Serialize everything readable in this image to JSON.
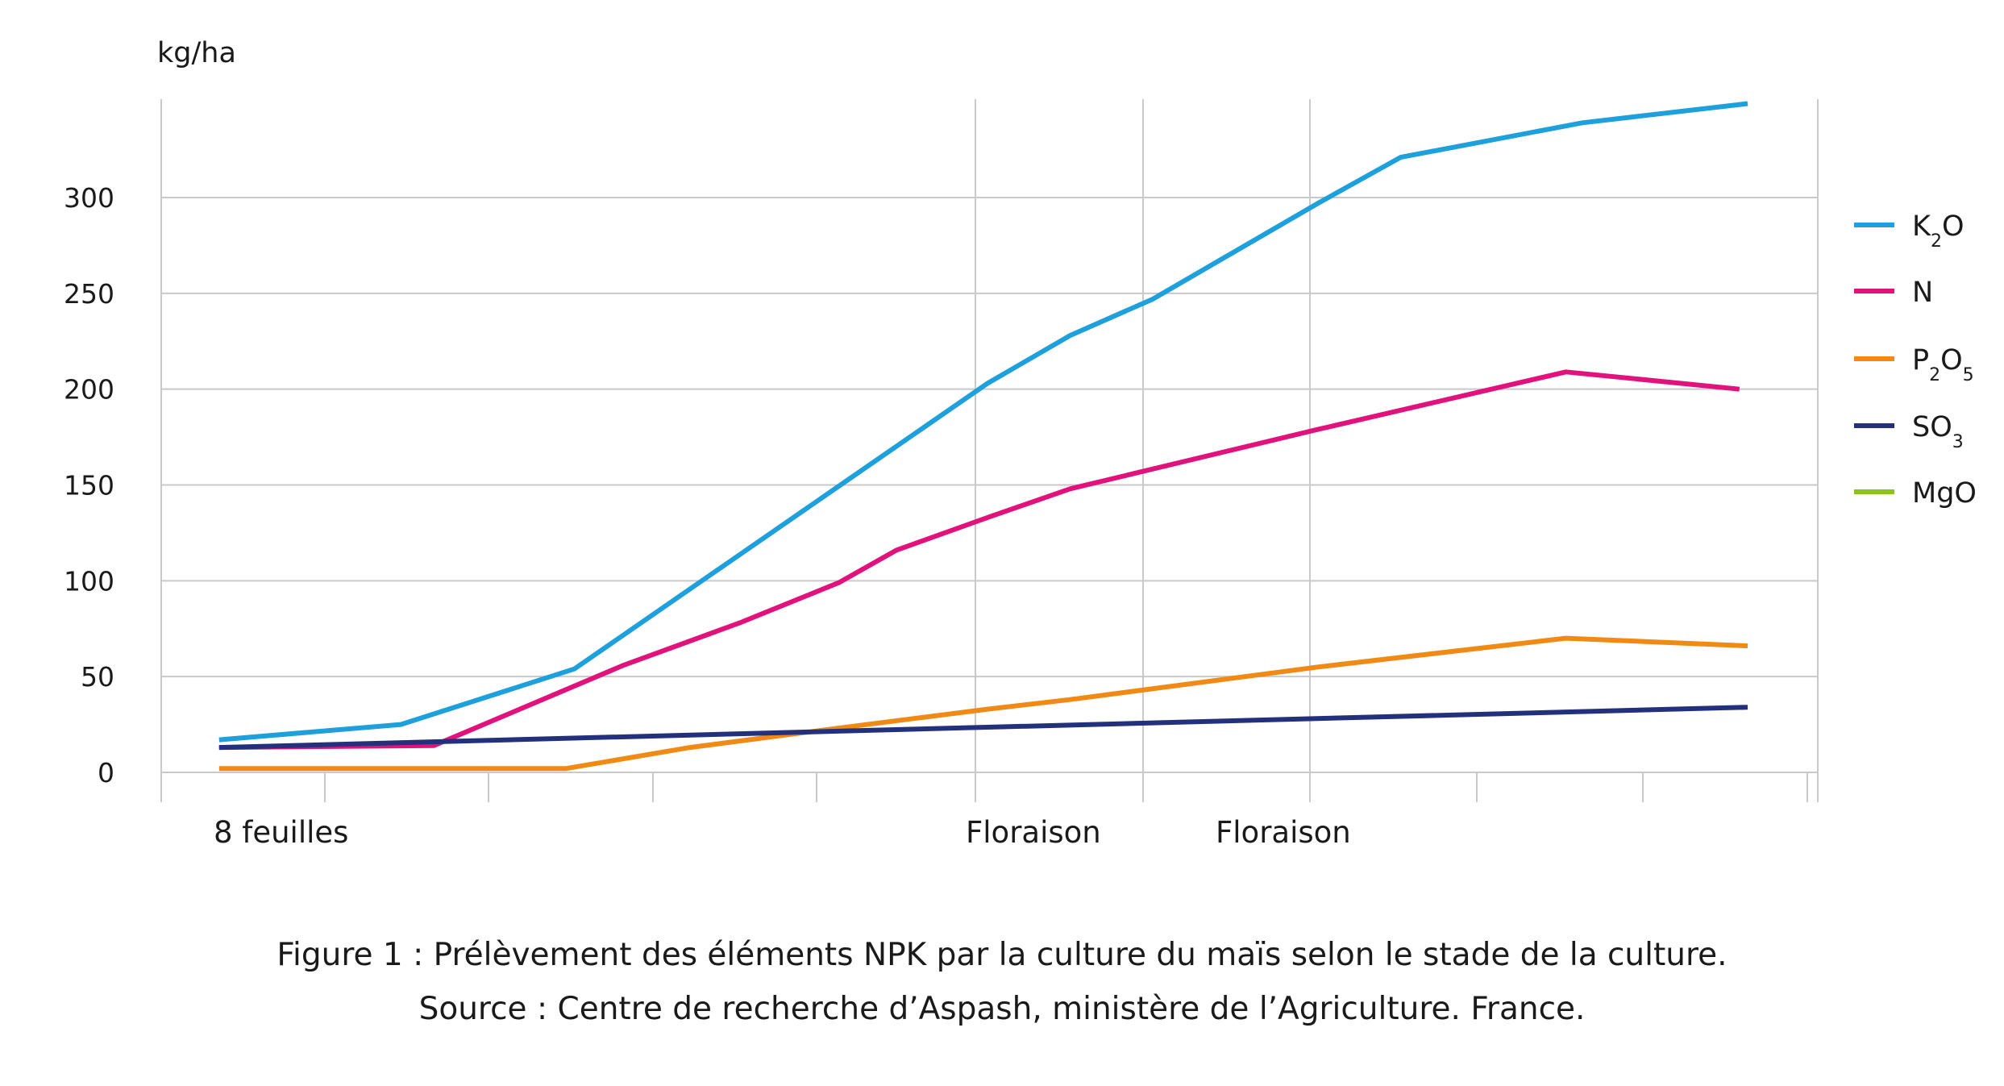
{
  "chart_data": {
    "type": "line",
    "ylabel": "kg/ha",
    "ylim": [
      0,
      350
    ],
    "yticks": [
      0,
      50,
      100,
      150,
      200,
      250,
      300
    ],
    "grid": true,
    "legend": "right",
    "stage_labels": [
      {
        "label": "8 feuilles",
        "x": 0.35
      },
      {
        "label": "Floraison",
        "x": 5.1
      },
      {
        "label": "Floraison",
        "x": 6.6
      }
    ],
    "series": [
      {
        "name": "K",
        "sub": "2",
        "tail": "O",
        "color": "#1ea0dc",
        "x": [
          0.35,
          1.45,
          2.5,
          5.0,
          5.5,
          6.0,
          7.0,
          7.5,
          8.6,
          9.6
        ],
        "y": [
          17,
          25,
          54,
          203,
          228,
          247,
          297,
          321,
          339,
          349
        ]
      },
      {
        "name": "N",
        "sub": "",
        "tail": "",
        "color": "#e2127d",
        "x": [
          0.35,
          1.65,
          2.8,
          3.5,
          4.1,
          4.45,
          5.0,
          5.5,
          7.0,
          8.5,
          9.55
        ],
        "y": [
          13,
          14,
          56,
          78,
          99,
          116,
          133,
          148,
          179,
          209,
          200
        ]
      },
      {
        "name": "P",
        "sub": "2",
        "tail": "O",
        "sub2": "5",
        "color": "#f08a15",
        "x": [
          0.35,
          2.45,
          3.2,
          4.0,
          5.0,
          5.5,
          7.0,
          8.5,
          9.6
        ],
        "y": [
          2,
          2,
          13,
          22,
          33,
          38,
          55,
          70,
          66
        ]
      },
      {
        "name": "SO",
        "sub": "3",
        "tail": "",
        "color": "#23307b",
        "x": [
          0.35,
          9.6
        ],
        "y": [
          13,
          34
        ]
      },
      {
        "name": "MgO",
        "sub": "",
        "tail": "",
        "color": "#8dc21f",
        "x": [],
        "y": []
      }
    ]
  },
  "caption": {
    "line1": "Figure 1 : Prélèvement des éléments NPK par la culture du maïs selon le stade de la culture.",
    "line2": "Source : Centre de recherche d’Aspash, ministère de l’Agriculture. France."
  }
}
